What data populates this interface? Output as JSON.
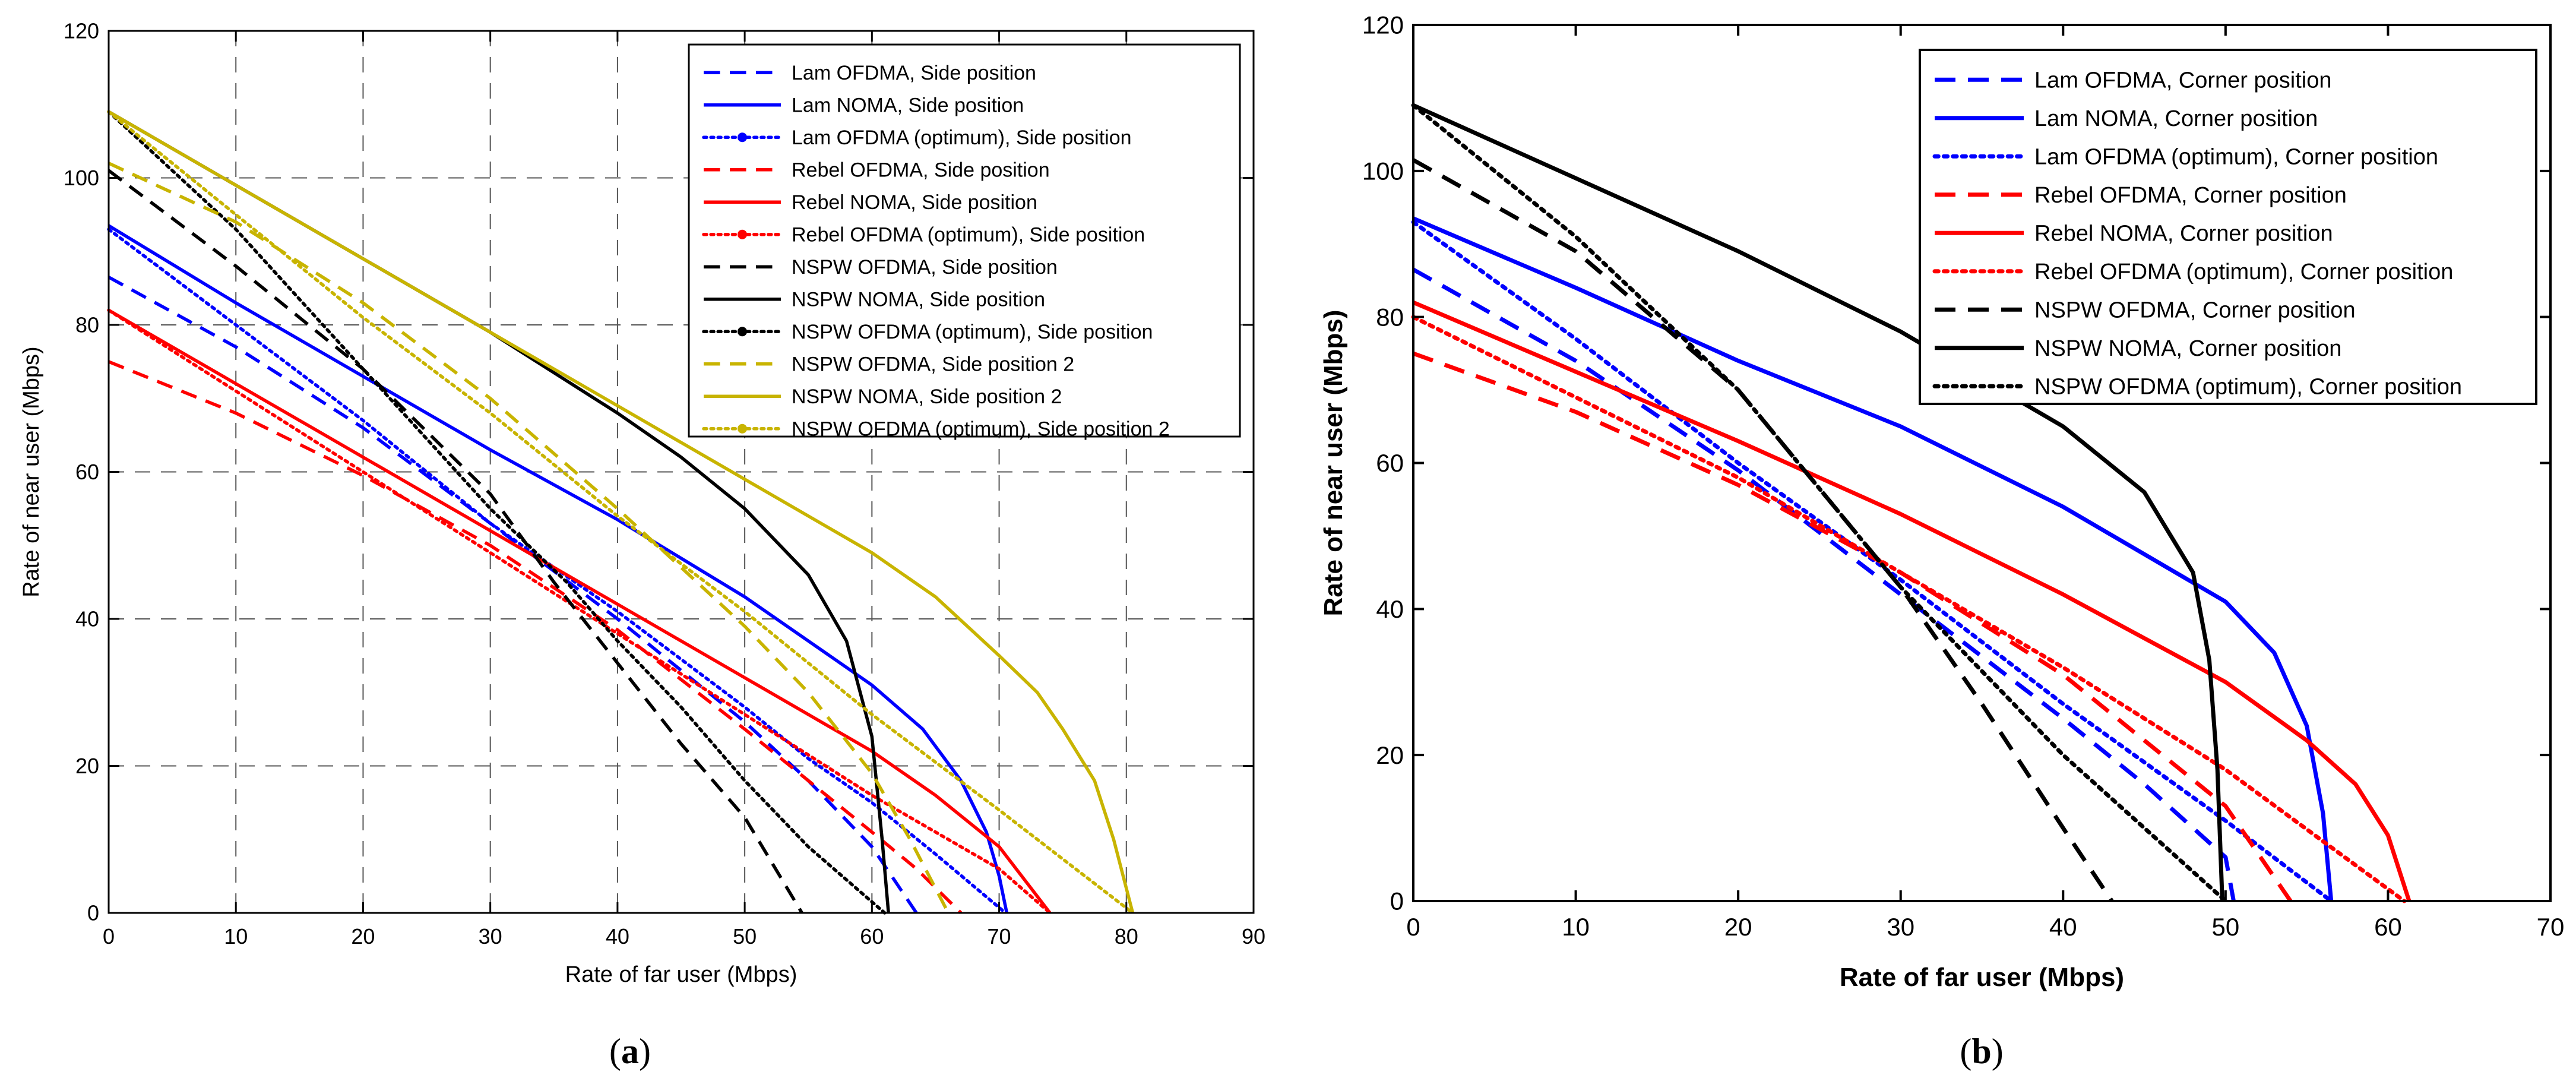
{
  "chart_data": [
    {
      "id": "a",
      "type": "line",
      "caption": "(a)",
      "caption_letter": "a",
      "xlabel": "Rate of far user (Mbps)",
      "ylabel": "Rate of near user (Mbps)",
      "xlim": [
        0,
        90
      ],
      "ylim": [
        0,
        120
      ],
      "xticks": [
        0,
        10,
        20,
        30,
        40,
        50,
        60,
        70,
        80,
        90
      ],
      "yticks": [
        0,
        20,
        40,
        60,
        80,
        100,
        120
      ],
      "grid": true,
      "legend_position": "top-right",
      "series": [
        {
          "name": "Lam OFDMA, Side position",
          "color": "#0000ff",
          "style": "dashed",
          "points": [
            [
              0,
              86.5
            ],
            [
              10,
              77
            ],
            [
              20,
              66
            ],
            [
              30,
              53
            ],
            [
              40,
              40
            ],
            [
              50,
              26
            ],
            [
              55,
              18
            ],
            [
              60,
              9
            ],
            [
              63.5,
              0
            ]
          ]
        },
        {
          "name": "Lam NOMA, Side position",
          "color": "#0000ff",
          "style": "solid",
          "points": [
            [
              0,
              93.5
            ],
            [
              10,
              83
            ],
            [
              20,
              73
            ],
            [
              30,
              63
            ],
            [
              40,
              53.5
            ],
            [
              50,
              43
            ],
            [
              55,
              37
            ],
            [
              60,
              31
            ],
            [
              64,
              25
            ],
            [
              67,
              18
            ],
            [
              69,
              11
            ],
            [
              70,
              5
            ],
            [
              70.6,
              0
            ]
          ]
        },
        {
          "name": "Lam OFDMA (optimum), Side position",
          "color": "#0000ff",
          "style": "dotted",
          "points": [
            [
              0,
              93
            ],
            [
              10,
              80
            ],
            [
              20,
              67
            ],
            [
              30,
              53
            ],
            [
              40,
              41
            ],
            [
              50,
              28
            ],
            [
              55,
              21
            ],
            [
              60,
              15
            ],
            [
              65,
              8
            ],
            [
              70.5,
              0
            ]
          ]
        },
        {
          "name": "Rebel OFDMA, Side position",
          "color": "#ff0000",
          "style": "dashed",
          "points": [
            [
              0,
              75
            ],
            [
              10,
              68
            ],
            [
              20,
              59.5
            ],
            [
              30,
              50
            ],
            [
              40,
              38.5
            ],
            [
              50,
              25
            ],
            [
              55,
              18
            ],
            [
              60,
              11
            ],
            [
              63.5,
              6
            ],
            [
              67,
              0
            ]
          ]
        },
        {
          "name": "Rebel NOMA, Side position",
          "color": "#ff0000",
          "style": "solid",
          "points": [
            [
              0,
              82
            ],
            [
              10,
              72
            ],
            [
              20,
              62
            ],
            [
              30,
              52
            ],
            [
              40,
              42
            ],
            [
              50,
              32
            ],
            [
              60,
              22
            ],
            [
              65,
              16
            ],
            [
              70,
              9
            ],
            [
              74,
              0
            ]
          ]
        },
        {
          "name": "Rebel OFDMA (optimum), Side position",
          "color": "#ff0000",
          "style": "dotted",
          "points": [
            [
              0,
              82
            ],
            [
              10,
              71
            ],
            [
              20,
              60
            ],
            [
              30,
              49
            ],
            [
              40,
              38
            ],
            [
              50,
              27
            ],
            [
              60,
              16
            ],
            [
              66,
              10
            ],
            [
              70,
              6
            ],
            [
              74,
              0
            ]
          ]
        },
        {
          "name": "NSPW OFDMA, Side position",
          "color": "#000000",
          "style": "dashed",
          "points": [
            [
              0,
              101
            ],
            [
              10,
              88
            ],
            [
              20,
              74
            ],
            [
              30,
              57
            ],
            [
              35,
              45
            ],
            [
              40,
              34
            ],
            [
              45,
              23
            ],
            [
              50,
              13
            ],
            [
              54.5,
              0
            ]
          ]
        },
        {
          "name": "NSPW NOMA, Side position",
          "color": "#000000",
          "style": "solid",
          "points": [
            [
              0,
              109
            ],
            [
              10,
              99
            ],
            [
              20,
              89
            ],
            [
              30,
              79
            ],
            [
              40,
              68
            ],
            [
              45,
              62
            ],
            [
              50,
              55
            ],
            [
              55,
              46
            ],
            [
              58,
              37
            ],
            [
              60,
              24
            ],
            [
              60.8,
              10
            ],
            [
              61.3,
              0
            ]
          ]
        },
        {
          "name": "NSPW OFDMA (optimum), Side position",
          "color": "#000000",
          "style": "dotted",
          "points": [
            [
              0,
              109
            ],
            [
              10,
              93
            ],
            [
              20,
              74
            ],
            [
              30,
              55
            ],
            [
              36,
              45
            ],
            [
              40,
              37
            ],
            [
              45,
              28
            ],
            [
              50,
              18
            ],
            [
              55,
              9
            ],
            [
              61,
              0
            ]
          ]
        },
        {
          "name": "NSPW OFDMA, Side position 2",
          "color": "#c8b400",
          "style": "dashed",
          "points": [
            [
              0,
              102
            ],
            [
              10,
              94
            ],
            [
              20,
              83
            ],
            [
              30,
              70
            ],
            [
              40,
              55
            ],
            [
              45,
              47
            ],
            [
              50,
              39
            ],
            [
              55,
              30
            ],
            [
              60,
              19
            ],
            [
              63,
              10
            ],
            [
              66,
              0
            ]
          ]
        },
        {
          "name": "NSPW NOMA, Side position 2",
          "color": "#c8b400",
          "style": "solid",
          "points": [
            [
              0,
              109
            ],
            [
              10,
              99
            ],
            [
              20,
              89
            ],
            [
              30,
              79
            ],
            [
              40,
              69
            ],
            [
              50,
              59
            ],
            [
              60,
              49
            ],
            [
              65,
              43
            ],
            [
              70,
              35
            ],
            [
              73,
              30
            ],
            [
              75,
              25
            ],
            [
              77.5,
              18
            ],
            [
              79,
              10
            ],
            [
              80.5,
              0
            ]
          ]
        },
        {
          "name": "NSPW OFDMA (optimum), Side position 2",
          "color": "#c8b400",
          "style": "dotted",
          "points": [
            [
              0,
              109
            ],
            [
              10,
              95
            ],
            [
              20,
              81
            ],
            [
              30,
              68
            ],
            [
              40,
              54
            ],
            [
              50,
              41
            ],
            [
              60,
              27
            ],
            [
              70,
              14
            ],
            [
              80.5,
              0
            ]
          ]
        }
      ]
    },
    {
      "id": "b",
      "type": "line",
      "caption": "(b)",
      "caption_letter": "b",
      "xlabel": "Rate of far user (Mbps)",
      "ylabel": "Rate of near user (Mbps)",
      "xlim": [
        0,
        70
      ],
      "ylim": [
        0,
        120
      ],
      "xticks": [
        0,
        10,
        20,
        30,
        40,
        50,
        60,
        70
      ],
      "yticks": [
        0,
        20,
        40,
        60,
        80,
        100,
        120
      ],
      "grid": false,
      "legend_position": "top-right",
      "series": [
        {
          "name": "Lam OFDMA, Corner position",
          "color": "#0000ff",
          "style": "dashed",
          "points": [
            [
              0,
              86.5
            ],
            [
              10,
              74
            ],
            [
              20,
              59
            ],
            [
              30,
              42
            ],
            [
              40,
              25
            ],
            [
              45,
              16
            ],
            [
              50,
              6
            ],
            [
              50.5,
              0
            ]
          ]
        },
        {
          "name": "Lam NOMA, Corner position",
          "color": "#0000ff",
          "style": "solid",
          "points": [
            [
              0,
              93.5
            ],
            [
              10,
              84
            ],
            [
              20,
              74
            ],
            [
              30,
              65
            ],
            [
              40,
              54
            ],
            [
              50,
              41
            ],
            [
              53,
              34
            ],
            [
              55,
              24
            ],
            [
              56,
              12
            ],
            [
              56.5,
              0
            ]
          ]
        },
        {
          "name": "Lam OFDMA (optimum), Corner position",
          "color": "#0000ff",
          "style": "dotted",
          "points": [
            [
              0,
              93
            ],
            [
              10,
              77
            ],
            [
              20,
              60
            ],
            [
              30,
              44
            ],
            [
              40,
              27
            ],
            [
              50,
              11
            ],
            [
              56.5,
              0
            ]
          ]
        },
        {
          "name": "Rebel OFDMA, Corner position",
          "color": "#ff0000",
          "style": "dashed",
          "points": [
            [
              0,
              75
            ],
            [
              10,
              67
            ],
            [
              20,
              57
            ],
            [
              30,
              45
            ],
            [
              40,
              31
            ],
            [
              50,
              13
            ],
            [
              54,
              0
            ]
          ]
        },
        {
          "name": "Rebel NOMA, Corner position",
          "color": "#ff0000",
          "style": "solid",
          "points": [
            [
              0,
              82
            ],
            [
              10,
              72.5
            ],
            [
              20,
              63
            ],
            [
              30,
              53
            ],
            [
              40,
              42
            ],
            [
              50,
              30
            ],
            [
              55,
              22
            ],
            [
              58,
              16
            ],
            [
              60,
              9
            ],
            [
              61.3,
              0
            ]
          ]
        },
        {
          "name": "Rebel OFDMA (optimum), Corner position",
          "color": "#ff0000",
          "style": "dotted",
          "points": [
            [
              0,
              80
            ],
            [
              10,
              69
            ],
            [
              20,
              58
            ],
            [
              30,
              45
            ],
            [
              40,
              32
            ],
            [
              50,
              18
            ],
            [
              61,
              0
            ]
          ]
        },
        {
          "name": "NSPW OFDMA, Corner position",
          "color": "#000000",
          "style": "dashed",
          "points": [
            [
              0,
              101.5
            ],
            [
              10,
              89
            ],
            [
              20,
              70
            ],
            [
              30,
              43
            ],
            [
              35,
              27
            ],
            [
              40,
              10
            ],
            [
              43,
              0
            ]
          ]
        },
        {
          "name": "NSPW NOMA, Corner position",
          "color": "#000000",
          "style": "solid",
          "points": [
            [
              0,
              109
            ],
            [
              10,
              99
            ],
            [
              20,
              89
            ],
            [
              30,
              78
            ],
            [
              40,
              65
            ],
            [
              45,
              56
            ],
            [
              48,
              45
            ],
            [
              49,
              33
            ],
            [
              49.5,
              18
            ],
            [
              49.8,
              0
            ]
          ]
        },
        {
          "name": "NSPW OFDMA (optimum), Corner position",
          "color": "#000000",
          "style": "dotted",
          "points": [
            [
              0,
              109
            ],
            [
              10,
              91
            ],
            [
              20,
              70
            ],
            [
              30,
              43
            ],
            [
              40,
              20
            ],
            [
              50,
              0
            ]
          ]
        }
      ]
    }
  ]
}
